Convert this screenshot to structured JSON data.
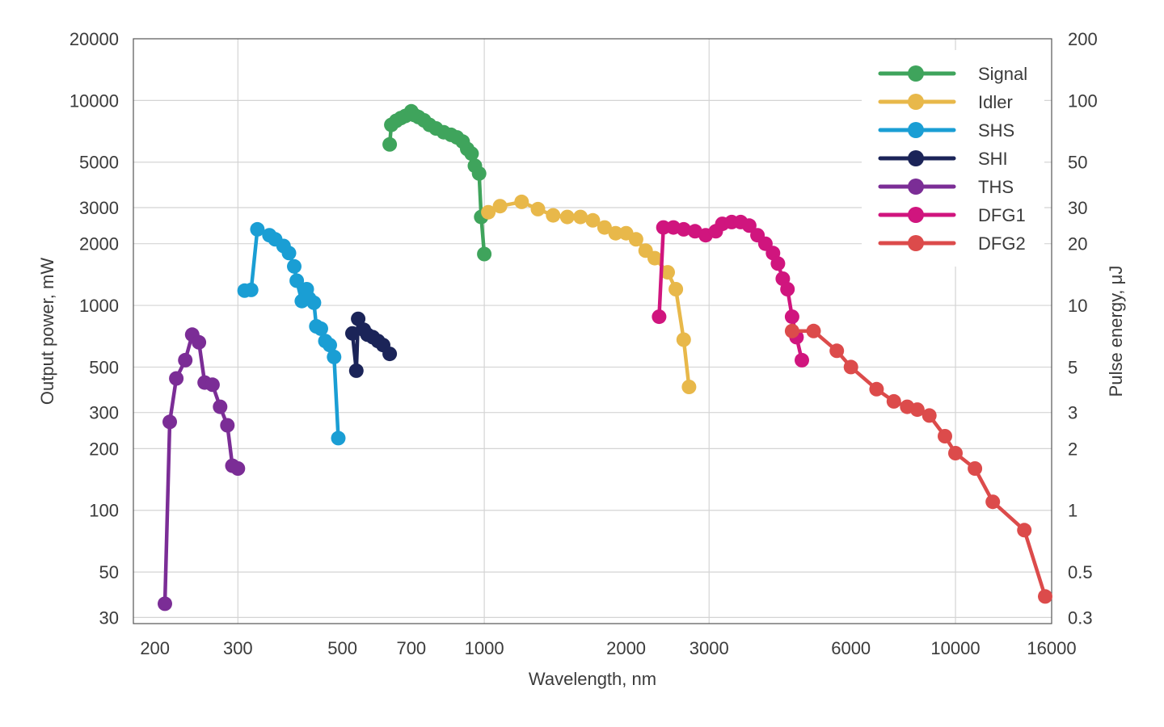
{
  "chart_data": {
    "type": "line",
    "xlabel": "Wavelength, nm",
    "ylabel": "Output power, mW",
    "y2label": "Pulse energy, μJ",
    "x_scale": "log",
    "y_scale": "log",
    "xlim": [
      180,
      16000
    ],
    "ylim": [
      28,
      20000
    ],
    "x_ticks": [
      200,
      300,
      500,
      700,
      1000,
      2000,
      3000,
      6000,
      10000,
      16000
    ],
    "x_tick_labels": [
      "200",
      "300",
      "500",
      "700",
      "1000",
      "2000",
      "3000",
      "6000",
      "10000",
      "16000"
    ],
    "y_ticks": [
      30,
      50,
      100,
      200,
      300,
      500,
      1000,
      2000,
      3000,
      5000,
      10000,
      20000
    ],
    "y_tick_labels": [
      "30",
      "50",
      "100",
      "200",
      "300",
      "500",
      "1000",
      "2000",
      "3000",
      "5000",
      "10000",
      "20000"
    ],
    "y2_tick_labels": [
      "0.3",
      "0.5",
      "1",
      "2",
      "3",
      "5",
      "10",
      "20",
      "30",
      "50",
      "100",
      "200"
    ],
    "grid": true,
    "legend_position": "top-right",
    "series": [
      {
        "name": "Signal",
        "color": "#3fa45c",
        "points": [
          [
            630,
            6100
          ],
          [
            635,
            7600
          ],
          [
            650,
            7950
          ],
          [
            665,
            8200
          ],
          [
            680,
            8400
          ],
          [
            700,
            8850
          ],
          [
            710,
            8500
          ],
          [
            725,
            8300
          ],
          [
            745,
            8000
          ],
          [
            765,
            7600
          ],
          [
            790,
            7300
          ],
          [
            820,
            7000
          ],
          [
            850,
            6800
          ],
          [
            875,
            6600
          ],
          [
            900,
            6300
          ],
          [
            920,
            5800
          ],
          [
            940,
            5500
          ],
          [
            955,
            4800
          ],
          [
            975,
            4400
          ],
          [
            985,
            2700
          ],
          [
            1000,
            1780
          ]
        ]
      },
      {
        "name": "Idler",
        "color": "#e8b84a",
        "points": [
          [
            1020,
            2850
          ],
          [
            1080,
            3050
          ],
          [
            1200,
            3200
          ],
          [
            1300,
            2950
          ],
          [
            1400,
            2750
          ],
          [
            1500,
            2700
          ],
          [
            1600,
            2700
          ],
          [
            1700,
            2600
          ],
          [
            1800,
            2400
          ],
          [
            1900,
            2250
          ],
          [
            2000,
            2250
          ],
          [
            2100,
            2100
          ],
          [
            2200,
            1850
          ],
          [
            2300,
            1700
          ],
          [
            2450,
            1450
          ],
          [
            2550,
            1200
          ],
          [
            2650,
            680
          ],
          [
            2720,
            400
          ]
        ]
      },
      {
        "name": "SHS",
        "color": "#1a9ed4",
        "points": [
          [
            310,
            1180
          ],
          [
            320,
            1190
          ],
          [
            330,
            2350
          ],
          [
            350,
            2200
          ],
          [
            360,
            2100
          ],
          [
            375,
            1950
          ],
          [
            385,
            1800
          ],
          [
            395,
            1550
          ],
          [
            400,
            1320
          ],
          [
            410,
            1050
          ],
          [
            420,
            1200
          ],
          [
            425,
            1080
          ],
          [
            435,
            1030
          ],
          [
            440,
            790
          ],
          [
            450,
            770
          ],
          [
            460,
            670
          ],
          [
            470,
            640
          ],
          [
            480,
            560
          ],
          [
            490,
            225
          ]
        ]
      },
      {
        "name": "SHI",
        "color": "#1b2458",
        "points": [
          [
            525,
            730
          ],
          [
            535,
            480
          ],
          [
            540,
            860
          ],
          [
            555,
            760
          ],
          [
            565,
            720
          ],
          [
            580,
            700
          ],
          [
            595,
            670
          ],
          [
            610,
            640
          ],
          [
            630,
            580
          ]
        ]
      },
      {
        "name": "THS",
        "color": "#7b2d96",
        "points": [
          [
            210,
            35
          ],
          [
            215,
            270
          ],
          [
            222,
            440
          ],
          [
            232,
            540
          ],
          [
            240,
            720
          ],
          [
            248,
            660
          ],
          [
            255,
            420
          ],
          [
            265,
            410
          ],
          [
            275,
            320
          ],
          [
            285,
            260
          ],
          [
            292,
            165
          ],
          [
            300,
            160
          ]
        ]
      },
      {
        "name": "DFG1",
        "color": "#d0157e",
        "points": [
          [
            2350,
            880
          ],
          [
            2400,
            2400
          ],
          [
            2520,
            2400
          ],
          [
            2650,
            2350
          ],
          [
            2800,
            2300
          ],
          [
            2950,
            2200
          ],
          [
            3100,
            2300
          ],
          [
            3200,
            2500
          ],
          [
            3350,
            2550
          ],
          [
            3500,
            2550
          ],
          [
            3650,
            2450
          ],
          [
            3800,
            2200
          ],
          [
            3950,
            2000
          ],
          [
            4100,
            1800
          ],
          [
            4200,
            1600
          ],
          [
            4300,
            1350
          ],
          [
            4400,
            1200
          ],
          [
            4500,
            880
          ],
          [
            4600,
            700
          ],
          [
            4720,
            540
          ]
        ]
      },
      {
        "name": "DFG2",
        "color": "#dc4b4b",
        "points": [
          [
            4500,
            750
          ],
          [
            5000,
            750
          ],
          [
            5600,
            600
          ],
          [
            6000,
            500
          ],
          [
            6800,
            390
          ],
          [
            7400,
            340
          ],
          [
            7900,
            320
          ],
          [
            8300,
            310
          ],
          [
            8800,
            290
          ],
          [
            9500,
            230
          ],
          [
            10000,
            190
          ],
          [
            11000,
            160
          ],
          [
            12000,
            110
          ],
          [
            14000,
            80
          ],
          [
            15500,
            38
          ]
        ]
      }
    ]
  }
}
